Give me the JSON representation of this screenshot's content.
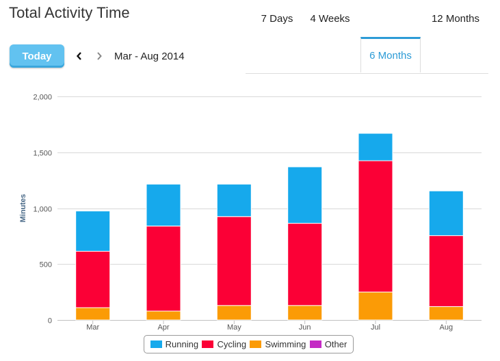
{
  "header": {
    "title": "Total Activity Time"
  },
  "toolbar": {
    "today_label": "Today",
    "date_range": "Mar - Aug 2014",
    "prev_icon": "chevron-left-icon",
    "next_icon": "chevron-right-icon"
  },
  "tabs": [
    {
      "label": "7 Days",
      "active": false
    },
    {
      "label": "4 Weeks",
      "active": false
    },
    {
      "label": "6 Months",
      "active": true
    },
    {
      "label": "12 Months",
      "active": false
    }
  ],
  "colors": {
    "accent": "#2c9bd6",
    "running": "#16a9ec",
    "cycling": "#fb0036",
    "swimming": "#fb9b06",
    "other": "#c42ac4"
  },
  "chart_data": {
    "type": "bar",
    "stacked": true,
    "categories": [
      "Mar",
      "Apr",
      "May",
      "Jun",
      "Jul",
      "Aug"
    ],
    "series": [
      {
        "name": "Swimming",
        "color": "#fb9b06",
        "values": [
          110,
          80,
          130,
          130,
          250,
          120
        ]
      },
      {
        "name": "Cycling",
        "color": "#fb0036",
        "values": [
          505,
          760,
          795,
          735,
          1175,
          635
        ]
      },
      {
        "name": "Running",
        "color": "#16a9ec",
        "values": [
          360,
          375,
          290,
          505,
          245,
          400
        ]
      },
      {
        "name": "Other",
        "color": "#c42ac4",
        "values": [
          0,
          0,
          0,
          0,
          0,
          0
        ]
      }
    ],
    "legend_order": [
      "Running",
      "Cycling",
      "Swimming",
      "Other"
    ],
    "ylabel": "Minutes",
    "xlabel": "",
    "ylim": [
      0,
      2000
    ],
    "yticks": [
      0,
      500,
      1000,
      1500,
      2000
    ],
    "ytick_labels": [
      "0",
      "500",
      "1,000",
      "1,500",
      "2,000"
    ],
    "grid": true,
    "legend_position": "bottom-center"
  }
}
